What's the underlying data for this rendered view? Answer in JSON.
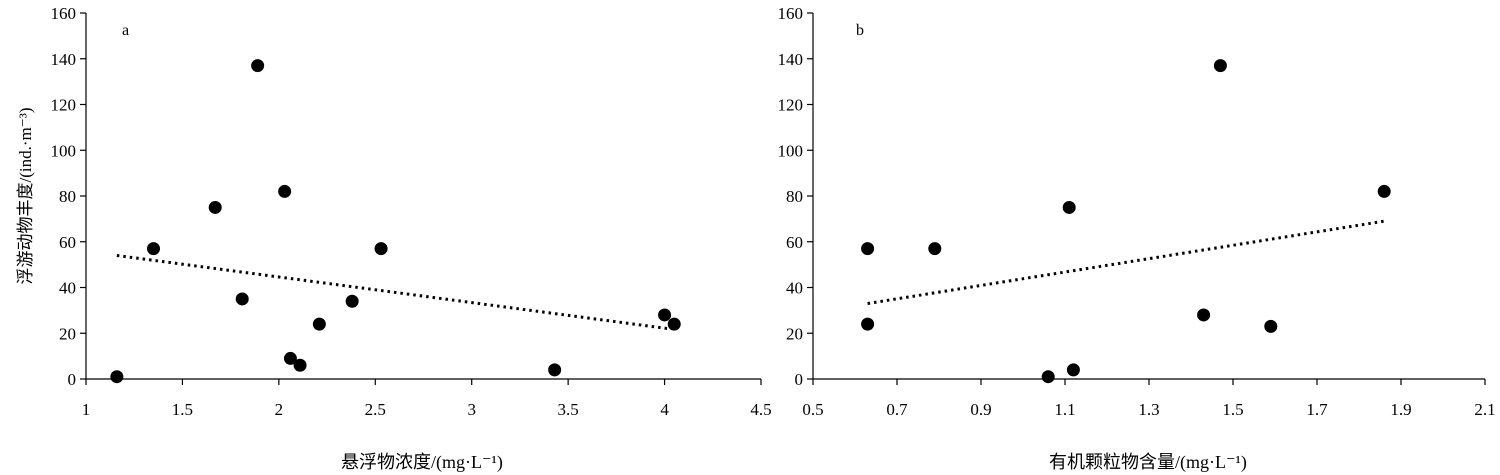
{
  "y_axis_label": "浮游动物丰度/(ind.·m⁻³)",
  "chart_data": [
    {
      "type": "scatter",
      "panel_label": "a",
      "xlabel": "悬浮物浓度/(mg·L⁻¹)",
      "xlim": [
        1,
        4.5
      ],
      "ylim": [
        0,
        160
      ],
      "xticks": [
        1,
        1.5,
        2,
        2.5,
        3,
        3.5,
        4,
        4.5
      ],
      "xtick_labels": [
        "1",
        "1.5",
        "2",
        "2.5",
        "3",
        "3.5",
        "4",
        "4.5"
      ],
      "yticks": [
        0,
        20,
        40,
        60,
        80,
        100,
        120,
        140,
        160
      ],
      "ytick_labels": [
        "0",
        "20",
        "40",
        "60",
        "80",
        "100",
        "120",
        "140",
        "160"
      ],
      "points": [
        {
          "x": 1.16,
          "y": 1
        },
        {
          "x": 1.35,
          "y": 57
        },
        {
          "x": 1.67,
          "y": 75
        },
        {
          "x": 1.81,
          "y": 35
        },
        {
          "x": 1.89,
          "y": 137
        },
        {
          "x": 2.03,
          "y": 82
        },
        {
          "x": 2.06,
          "y": 9
        },
        {
          "x": 2.11,
          "y": 6
        },
        {
          "x": 2.21,
          "y": 24
        },
        {
          "x": 2.38,
          "y": 34
        },
        {
          "x": 2.53,
          "y": 57
        },
        {
          "x": 3.43,
          "y": 4
        },
        {
          "x": 4.0,
          "y": 28
        },
        {
          "x": 4.05,
          "y": 24
        }
      ],
      "trendline": {
        "style": "dotted",
        "x": [
          1.16,
          4.02
        ],
        "y": [
          54,
          22
        ]
      },
      "grid": false
    },
    {
      "type": "scatter",
      "panel_label": "b",
      "xlabel": "有机颗粒物含量/(mg·L⁻¹)",
      "xlim": [
        0.5,
        2.1
      ],
      "ylim": [
        0,
        160
      ],
      "xticks": [
        0.5,
        0.7,
        0.9,
        1.1,
        1.3,
        1.5,
        1.7,
        1.9,
        2.1
      ],
      "xtick_labels": [
        "0.5",
        "0.7",
        "0.9",
        "1.1",
        "1.3",
        "1.5",
        "1.7",
        "1.9",
        "2.1"
      ],
      "yticks": [
        0,
        20,
        40,
        60,
        80,
        100,
        120,
        140,
        160
      ],
      "ytick_labels": [
        "0",
        "20",
        "40",
        "60",
        "80",
        "100",
        "120",
        "140",
        "160"
      ],
      "points": [
        {
          "x": 0.63,
          "y": 57
        },
        {
          "x": 0.63,
          "y": 24
        },
        {
          "x": 0.79,
          "y": 57
        },
        {
          "x": 1.06,
          "y": 1
        },
        {
          "x": 1.11,
          "y": 75
        },
        {
          "x": 1.12,
          "y": 4
        },
        {
          "x": 1.43,
          "y": 28
        },
        {
          "x": 1.47,
          "y": 137
        },
        {
          "x": 1.59,
          "y": 23
        },
        {
          "x": 1.86,
          "y": 82
        }
      ],
      "trendline": {
        "style": "dotted",
        "x": [
          0.63,
          1.86
        ],
        "y": [
          33,
          69
        ]
      },
      "grid": false
    }
  ]
}
